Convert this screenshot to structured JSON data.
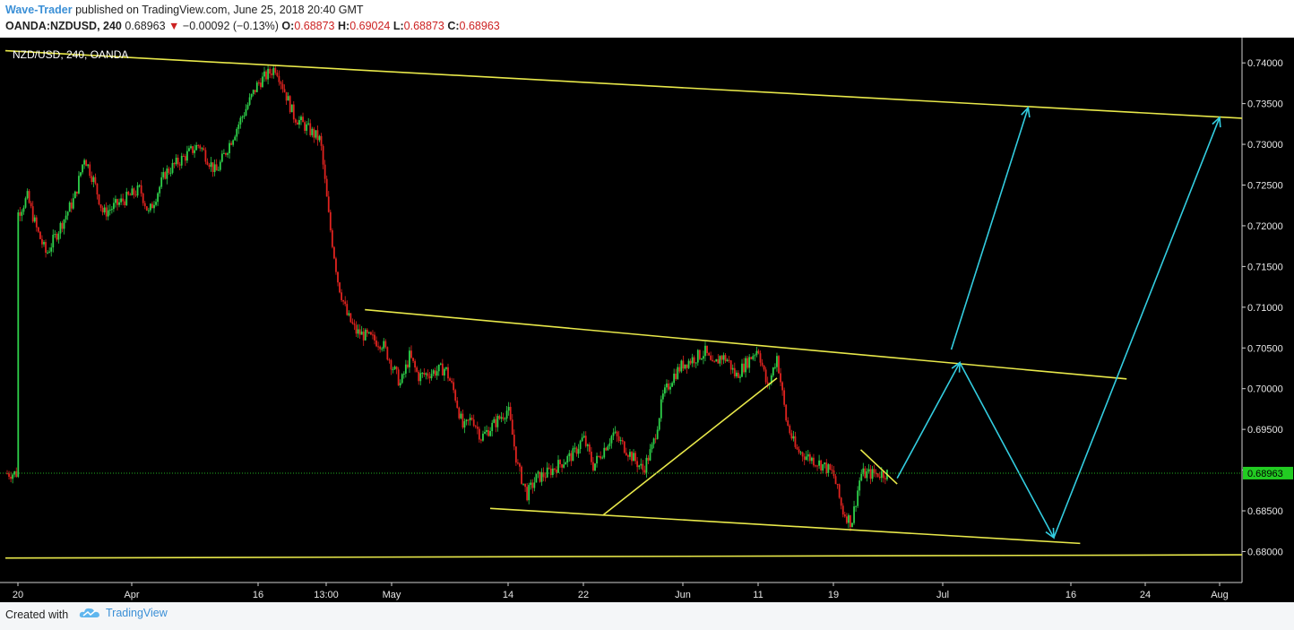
{
  "header": {
    "author": "Wave-Trader",
    "published": "published on TradingView.com, June 25, 2018 20:40 GMT",
    "symbol": "OANDA:NZDUSD, 240",
    "price": "0.68963",
    "change_arrow": "▼",
    "change": "−0.00092 (−0.13%)",
    "o_label": "O:",
    "o_value": "0.68873",
    "h_label": "H:",
    "h_value": "0.69024",
    "l_label": "L:",
    "l_value": "0.68873",
    "c_label": "C:",
    "c_value": "0.68963"
  },
  "footer": {
    "created_with": "Created with",
    "brand": "TradingView",
    "logo_icon": "tradingview-cloud-icon"
  },
  "colors": {
    "background": "#000000",
    "up_candle": "#2ed04a",
    "down_candle": "#e0231f",
    "trendline": "#e8e84a",
    "projection": "#33cde0",
    "price_line": "#21b121",
    "price_tag": "#22cc22"
  },
  "chart_data": {
    "type": "candlestick",
    "title": "NZD/USD, 240, OANDA",
    "y_ticks": [
      "0.74000",
      "0.73500",
      "0.73000",
      "0.72500",
      "0.72000",
      "0.71500",
      "0.71000",
      "0.70500",
      "0.70000",
      "0.69500",
      "0.69000",
      "0.68500",
      "0.68000"
    ],
    "x_ticks": [
      "20",
      "Apr",
      "16",
      "13:00",
      "May",
      "14",
      "22",
      "Jun",
      "11",
      "19",
      "Jul",
      "16",
      "24",
      "Aug"
    ],
    "ylim": [
      0.6762,
      0.7431
    ],
    "last_price": "0.68963",
    "close_path": [
      [
        "Mar 20",
        0.7215
      ],
      [
        "Mar 21",
        0.7235
      ],
      [
        "Mar 22",
        0.7195
      ],
      [
        "Mar 23",
        0.7165
      ],
      [
        "Mar 26",
        0.7235
      ],
      [
        "Mar 27",
        0.7285
      ],
      [
        "Mar 28",
        0.7255
      ],
      [
        "Mar 29",
        0.7215
      ],
      [
        "Apr 2",
        0.7245
      ],
      [
        "Apr 3",
        0.7215
      ],
      [
        "Apr 5",
        0.7265
      ],
      [
        "Apr 9",
        0.73
      ],
      [
        "Apr 11",
        0.7265
      ],
      [
        "Apr 13",
        0.731
      ],
      [
        "Apr 16",
        0.7375
      ],
      [
        "Apr 18",
        0.7395
      ],
      [
        "Apr 19",
        0.7365
      ],
      [
        "Apr 20",
        0.7335
      ],
      [
        "Apr 23",
        0.7305
      ],
      [
        "Apr 24",
        0.7205
      ],
      [
        "Apr 25",
        0.713
      ],
      [
        "Apr 26",
        0.709
      ],
      [
        "Apr 27",
        0.707
      ],
      [
        "Apr 30",
        0.7055
      ],
      [
        "May 1",
        0.703
      ],
      [
        "May 2",
        0.7005
      ],
      [
        "May 3",
        0.704
      ],
      [
        "May 4",
        0.7015
      ],
      [
        "May 7",
        0.7025
      ],
      [
        "May 8",
        0.6995
      ],
      [
        "May 9",
        0.695
      ],
      [
        "May 10",
        0.6965
      ],
      [
        "May 11",
        0.694
      ],
      [
        "May 14",
        0.6975
      ],
      [
        "May 15",
        0.6905
      ],
      [
        "May 16",
        0.687
      ],
      [
        "May 17",
        0.689
      ],
      [
        "May 18",
        0.6895
      ],
      [
        "May 21",
        0.692
      ],
      [
        "May 22",
        0.694
      ],
      [
        "May 23",
        0.6905
      ],
      [
        "May 24",
        0.6925
      ],
      [
        "May 25",
        0.6945
      ],
      [
        "May 28",
        0.69
      ],
      [
        "May 29",
        0.693
      ],
      [
        "May 30",
        0.699
      ],
      [
        "May 31",
        0.7015
      ],
      [
        "Jun 1",
        0.703
      ],
      [
        "Jun 4",
        0.7045
      ],
      [
        "Jun 5",
        0.7025
      ],
      [
        "Jun 6",
        0.704
      ],
      [
        "Jun 7",
        0.7035
      ],
      [
        "Jun 8",
        0.7015
      ],
      [
        "Jun 11",
        0.705
      ],
      [
        "Jun 12",
        0.7
      ],
      [
        "Jun 13",
        0.704
      ],
      [
        "Jun 14",
        0.696
      ],
      [
        "Jun 15",
        0.6925
      ],
      [
        "Jun 18",
        0.6905
      ],
      [
        "Jun 19",
        0.6895
      ],
      [
        "Jun 20",
        0.685
      ],
      [
        "Jun 21",
        0.6835
      ],
      [
        "Jun 22",
        0.6895
      ],
      [
        "Jun 25",
        0.6896
      ]
    ],
    "annotations": {
      "trendlines": [
        {
          "from": [
            "Mar 20",
            0.7415
          ],
          "to": [
            "Aug 5",
            0.7332
          ]
        },
        {
          "from": [
            "Apr 28",
            0.7097
          ],
          "to": [
            "Jul 22",
            0.7012
          ]
        },
        {
          "from": [
            "May 12",
            0.6853
          ],
          "to": [
            "Jul 17",
            0.681
          ]
        },
        {
          "from": [
            "Mar 20",
            0.6792
          ],
          "to": [
            "Aug 5",
            0.6796
          ]
        },
        {
          "from": [
            "May 24",
            0.6845
          ],
          "to": [
            "Jun 13",
            0.7013
          ]
        },
        {
          "from": [
            "Jun 22",
            0.6925
          ],
          "to": [
            "Jun 26",
            0.6883
          ]
        }
      ],
      "projection_arrows": [
        {
          "from": [
            "Jun 26",
            0.689
          ],
          "to": [
            "Jul 3",
            0.7032
          ]
        },
        {
          "from": [
            "Jul 3",
            0.7032
          ],
          "to": [
            "Jul 14",
            0.6817
          ]
        },
        {
          "from": [
            "Jul 2",
            0.7048
          ],
          "to": [
            "Jul 11",
            0.7345
          ]
        },
        {
          "from": [
            "Jul 14",
            0.6817
          ],
          "to": [
            "Aug 1",
            0.7333
          ]
        }
      ]
    }
  }
}
